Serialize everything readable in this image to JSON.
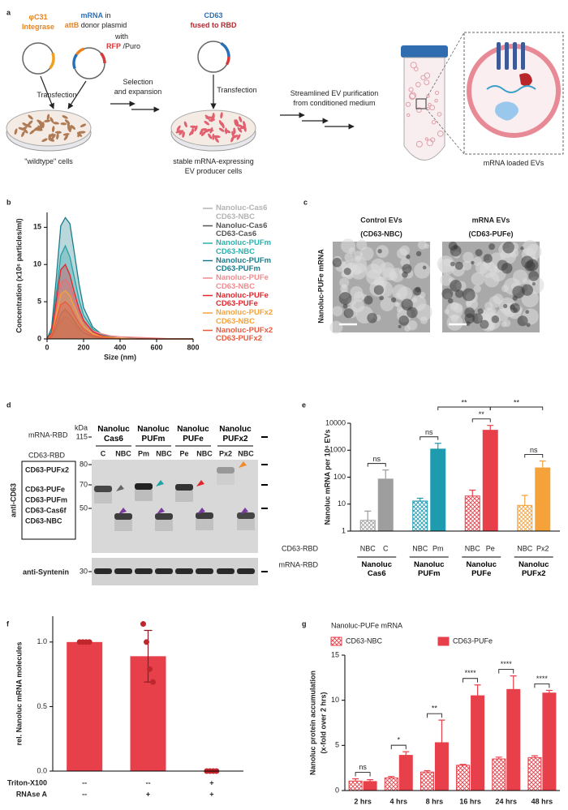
{
  "panels": {
    "a": {
      "letter": "a",
      "labels": [
        [
          {
            "text": "φC31",
            "color": "#e8821e"
          }
        ],
        [
          {
            "text": "Integrase",
            "color": "#e8821e"
          }
        ],
        [
          {
            "text": "mRNA",
            "color": "#2a6fb5"
          },
          {
            "text": "in"
          }
        ],
        [
          {
            "text": "attB",
            "color": "#e8821e"
          },
          {
            "text": "donor plasmid"
          }
        ],
        [
          {
            "text": "with"
          }
        ],
        [
          {
            "text": "RFP",
            "color": "#d63a3a"
          },
          {
            "text": "/Puro"
          }
        ],
        [
          {
            "text": "CD63",
            "color": "#2a6fb5"
          }
        ],
        [
          {
            "text": "fused to RBD",
            "color": "#b8262c"
          }
        ],
        [
          {
            "text": "Transfection"
          }
        ],
        [
          {
            "text": "Transfection"
          }
        ],
        [
          {
            "text": "Selection"
          }
        ],
        [
          {
            "text": "and expansion"
          }
        ],
        [
          {
            "text": "Streamlined EV purification"
          }
        ],
        [
          {
            "text": "from conditioned medium"
          }
        ],
        [
          {
            "text": "\"wildtype\" cells"
          }
        ],
        [
          {
            "text": "stable mRNA-expressing"
          }
        ],
        [
          {
            "text": "EV producer cells"
          }
        ],
        [
          {
            "text": "mRNA loaded EVs"
          }
        ]
      ]
    },
    "c": {
      "letter": "c",
      "side_label": "Nanoluc-PUFe mRNA",
      "images": [
        {
          "title": "Control EVs",
          "subtitle": "(CD63-NBC)"
        },
        {
          "title": "mRNA EVs",
          "subtitle": "(CD63-PUFe)"
        }
      ]
    },
    "d": {
      "letter": "d",
      "mrna_label": "mRNA-RBD",
      "cd63_label": "CD63-RBD",
      "legend": [
        {
          "text": "CD63-PUFx2",
          "color": "#f08a2c"
        },
        {
          "text": "CD63-PUFe",
          "color": "#e3262c"
        },
        {
          "text": "CD63-PUFm",
          "color": "#1fa3a3"
        },
        {
          "text": "CD63-Cas6f",
          "color": "#666666"
        },
        {
          "text": "CD63-NBC",
          "color": "#7a3aa0"
        }
      ],
      "anti_cd63": "anti-CD63",
      "anti_syntenin": "anti-Syntenin",
      "kda": "kDa",
      "markers": [
        "115",
        "80",
        "70",
        "50",
        "30"
      ],
      "groups": [
        "Nanoluc Cas6",
        "Nanoluc PUFm",
        "Nanoluc PUFe",
        "Nanoluc PUFx2"
      ],
      "lanes": [
        "C",
        "NBC",
        "Pm",
        "NBC",
        "Pe",
        "NBC",
        "Px2",
        "NBC"
      ]
    }
  },
  "chart_data": [
    {
      "letter": "b",
      "type": "line",
      "x_label": "Size (nm)",
      "y_label": "Concentration (x10⁶ particles/ml)",
      "x": [
        0,
        25,
        50,
        75,
        100,
        125,
        150,
        175,
        200,
        250,
        300,
        350,
        400,
        500,
        600,
        700,
        800
      ],
      "xlim": [
        0,
        800
      ],
      "xticks": [
        0,
        200,
        400,
        600,
        800
      ],
      "ylim": [
        0,
        17
      ],
      "yticks": [
        0,
        5,
        10,
        15
      ],
      "series": [
        {
          "name": "Nanoluc-Cas6 CD63-NBC",
          "color": "#b3b3b3",
          "values": [
            0,
            0.2,
            1.2,
            2.5,
            3,
            2.6,
            1.9,
            1.2,
            0.7,
            0.3,
            0.1,
            0.05,
            0,
            0,
            0,
            0,
            0
          ]
        },
        {
          "name": "Nanoluc-Cas6 CD63-Cas6",
          "color": "#555555",
          "values": [
            0,
            0.3,
            1.6,
            3.4,
            4,
            3.3,
            2.4,
            1.5,
            0.9,
            0.3,
            0.1,
            0.05,
            0,
            0,
            0,
            0,
            0
          ]
        },
        {
          "name": "Nanoluc-PUFm CD63-NBC",
          "color": "#2bb0ae",
          "values": [
            0,
            1,
            6,
            11.2,
            12.5,
            11,
            8.2,
            5.3,
            3.2,
            1.3,
            0.5,
            0.2,
            0.1,
            0.05,
            0,
            0,
            0
          ]
        },
        {
          "name": "Nanoluc-PUFm CD63-PUFm",
          "color": "#1a7d8c",
          "values": [
            0,
            1.5,
            8,
            15.2,
            16.3,
            15.5,
            11.5,
            7.4,
            4.2,
            1.6,
            0.6,
            0.3,
            0.1,
            0.05,
            0,
            0,
            0
          ]
        },
        {
          "name": "Nanoluc-PUFe CD63-NBC",
          "color": "#f28b8e",
          "values": [
            0,
            0.6,
            4,
            7.4,
            8,
            7.2,
            5.3,
            3.6,
            2.3,
            1.1,
            0.7,
            0.4,
            0.3,
            0.2,
            0.1,
            0,
            0
          ]
        },
        {
          "name": "Nanoluc-PUFe CD63-PUFe",
          "color": "#e3262c",
          "values": [
            0,
            0.8,
            5,
            9.3,
            10,
            8.6,
            6.2,
            4.1,
            2.5,
            1,
            0.4,
            0.2,
            0.1,
            0,
            0,
            0,
            0
          ]
        },
        {
          "name": "Nanoluc-PUFx2 CD63-NBC",
          "color": "#f5a23a",
          "values": [
            0,
            0.5,
            3.2,
            6,
            6.5,
            5.8,
            4.3,
            2.9,
            1.8,
            0.7,
            0.3,
            0.2,
            0.1,
            0,
            0,
            0,
            0
          ]
        },
        {
          "name": "Nanoluc-PUFx2 CD63-PUFx2",
          "color": "#ea5a3c",
          "values": [
            0,
            0.4,
            2.5,
            4.6,
            5,
            4.4,
            3.2,
            2.1,
            1.3,
            0.5,
            0.2,
            0.1,
            0,
            0,
            0,
            0,
            0
          ]
        }
      ]
    },
    {
      "letter": "e",
      "type": "bar",
      "y_label": "Nanoluc mRNA per 10⁶ EVs",
      "log_scale": true,
      "ylim": [
        1,
        10000
      ],
      "yticks": [
        1,
        10,
        100,
        1000,
        10000
      ],
      "categories": [
        "NBC",
        "C",
        "NBC",
        "Pm",
        "NBC",
        "Pe",
        "NBC",
        "Px2"
      ],
      "values": [
        2.5,
        85,
        13,
        1100,
        20,
        5500,
        9,
        220
      ],
      "errors": [
        3,
        100,
        3.5,
        700,
        13,
        2800,
        12,
        180
      ],
      "colors": [
        "#9e9e9e",
        "#9e9e9e",
        "#1f9bb0",
        "#1f9bb0",
        "#e8404a",
        "#e8404a",
        "#f5a23a",
        "#f5a23a"
      ],
      "hatched": [
        true,
        false,
        true,
        false,
        true,
        false,
        true,
        false
      ],
      "groups": [
        "Nanoluc Cas6",
        "Nanoluc PUFm",
        "Nanoluc PUFe",
        "Nanoluc PUFx2"
      ],
      "row_labels": [
        "CD63-RBD",
        "mRNA-RBD"
      ],
      "significance": [
        {
          "label": "ns",
          "between": [
            0,
            1
          ]
        },
        {
          "label": "ns",
          "between": [
            2,
            3
          ]
        },
        {
          "label": "**",
          "between": [
            3,
            5
          ]
        },
        {
          "label": "**",
          "between": [
            4,
            5
          ]
        },
        {
          "label": "**",
          "between": [
            5,
            7
          ]
        },
        {
          "label": "ns",
          "between": [
            6,
            7
          ]
        }
      ]
    },
    {
      "letter": "f",
      "type": "bar",
      "y_label": "rel. Nanoluc mRNA molecules",
      "ylim": [
        0,
        1.2
      ],
      "yticks": [
        {
          "value": 0,
          "label": "0.0"
        },
        {
          "value": 0.5,
          "label": "0.5"
        },
        {
          "value": 1,
          "label": "1.0"
        }
      ],
      "values": [
        1,
        0.89,
        0
      ],
      "errors": [
        0,
        0.2,
        0
      ],
      "points": [
        [
          1,
          1,
          1,
          1
        ],
        [
          1.14,
          1.0,
          0.79,
          0.69
        ],
        [
          0,
          0,
          0,
          0
        ]
      ],
      "color": "#e8404a",
      "point_color": "#c0272d",
      "rows": [
        {
          "name": "Triton-X100",
          "labels": [
            "--",
            "--",
            "+"
          ]
        },
        {
          "name": "RNAse A",
          "labels": [
            "--",
            "+",
            "+"
          ]
        }
      ]
    },
    {
      "letter": "g",
      "type": "grouped_bar",
      "title": "Nanoluc-PUFe mRNA",
      "y_label": [
        "Nanoluc protein accumulation",
        "(x-fold over 2 hrs)"
      ],
      "categories": [
        "2 hrs",
        "4 hrs",
        "8 hrs",
        "16 hrs",
        "24 hrs",
        "48 hrs"
      ],
      "ylim": [
        0,
        15
      ],
      "yticks": [
        0,
        5,
        10,
        15
      ],
      "series": [
        {
          "name": "CD63-NBC",
          "color": "#e8404a",
          "hatched": true,
          "values": [
            1.05,
            1.4,
            2.05,
            2.8,
            3.5,
            3.65
          ],
          "errors": [
            0.25,
            0.15,
            0.15,
            0.1,
            0.2,
            0.2
          ]
        },
        {
          "name": "CD63-PUFe",
          "color": "#e8404a",
          "hatched": false,
          "values": [
            1.0,
            3.9,
            5.3,
            10.5,
            11.2,
            10.8
          ],
          "errors": [
            0.2,
            0.4,
            2.5,
            1.2,
            1.5,
            0.3
          ]
        }
      ],
      "significance": [
        "ns",
        "*",
        "**",
        "****",
        "****",
        "****"
      ]
    }
  ]
}
